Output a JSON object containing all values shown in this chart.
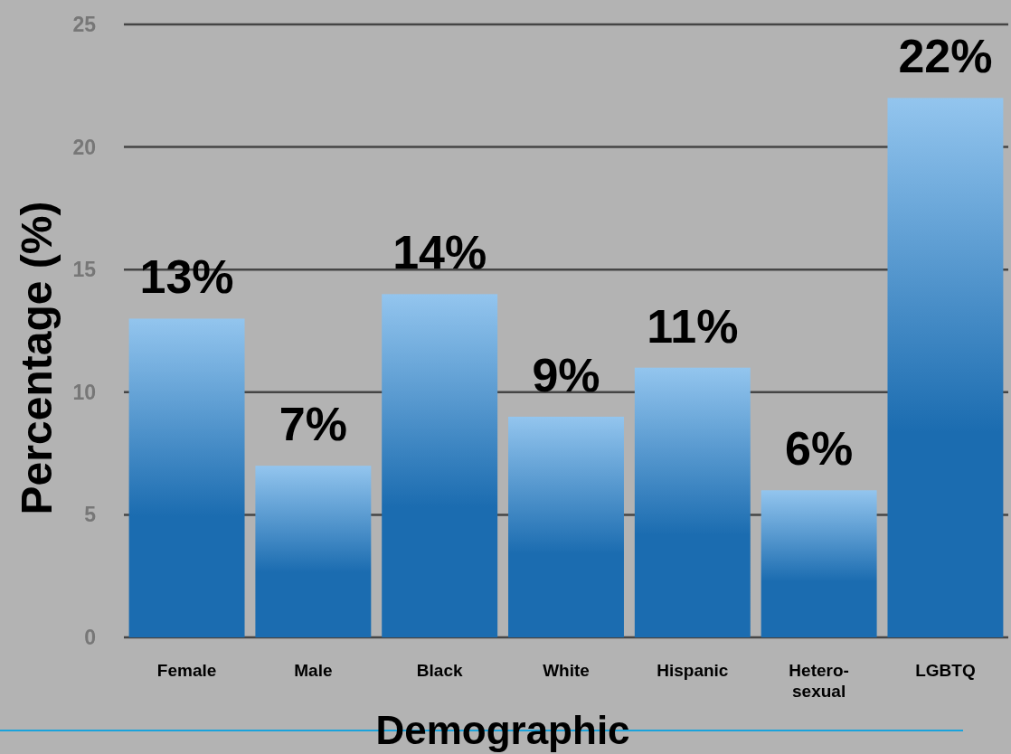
{
  "chart_data": {
    "type": "bar",
    "xlabel": "Demographic",
    "ylabel": "Percentage (%)",
    "categories": [
      "Female",
      "Male",
      "Black",
      "White",
      "Hispanic",
      "Hetero-\nsexual",
      "LGBTQ"
    ],
    "values": [
      13,
      7,
      14,
      9,
      11,
      6,
      22
    ],
    "value_labels": [
      "13%",
      "7%",
      "14%",
      "9%",
      "11%",
      "6%",
      "22%"
    ],
    "color": "#1b6cb0",
    "ylim": [
      0,
      25
    ],
    "yticks": [
      0,
      5,
      10,
      15,
      20,
      25
    ],
    "grid": "y"
  }
}
